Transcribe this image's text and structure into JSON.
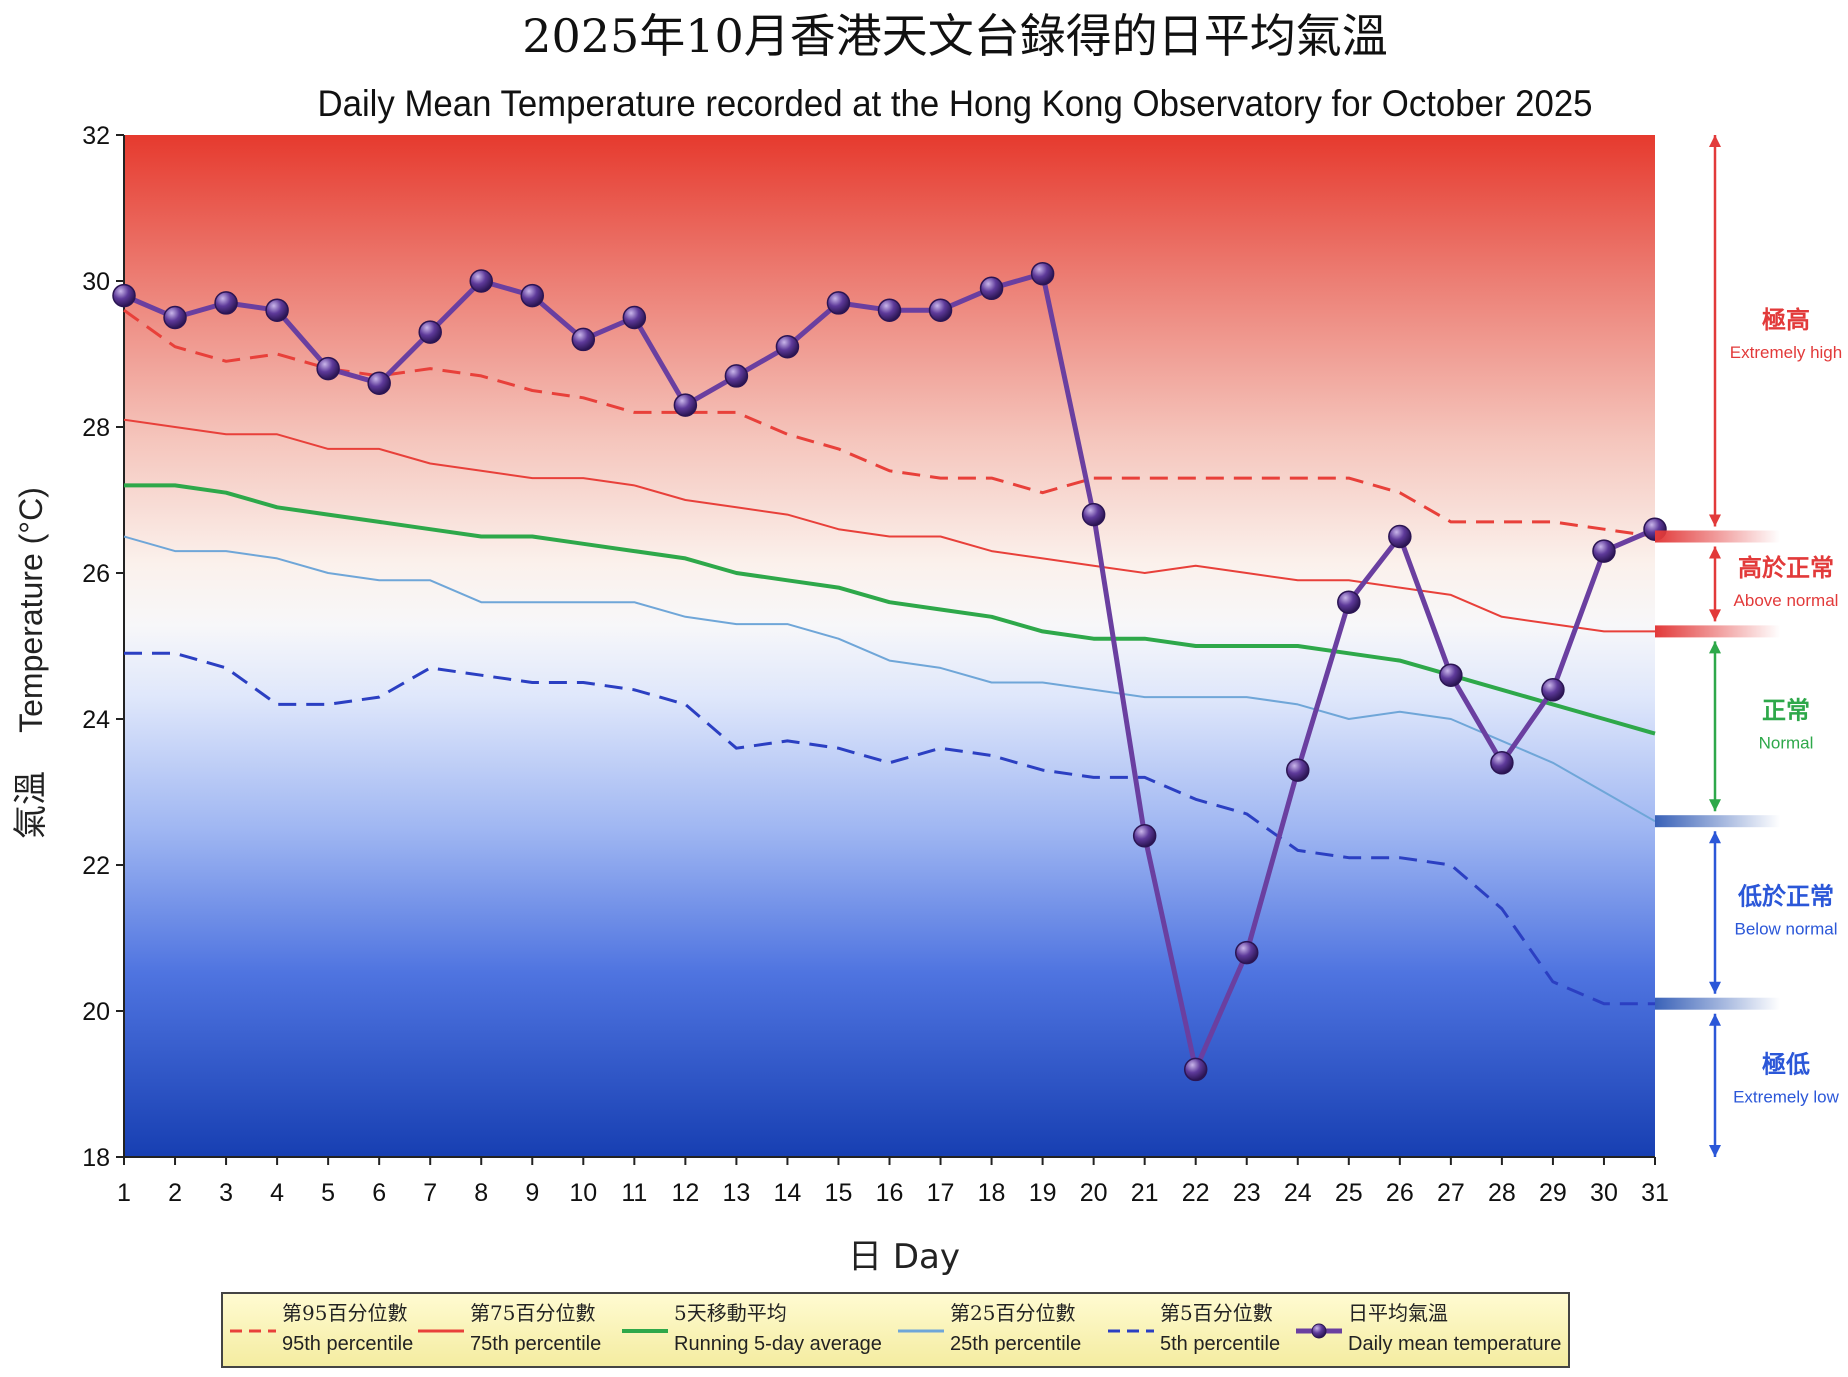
{
  "chart_data": {
    "type": "line",
    "title_zh": "2025年10月香港天文台錄得的日平均氣溫",
    "title_en": "Daily Mean Temperature recorded at the Hong Kong Observatory for October 2025",
    "xlabel": "日 Day",
    "ylabel_zh": "氣溫",
    "ylabel_en": "Temperature (°C)",
    "ylim": [
      18,
      32
    ],
    "yticks": [
      18,
      20,
      22,
      24,
      26,
      28,
      30,
      32
    ],
    "x": [
      1,
      2,
      3,
      4,
      5,
      6,
      7,
      8,
      9,
      10,
      11,
      12,
      13,
      14,
      15,
      16,
      17,
      18,
      19,
      20,
      21,
      22,
      23,
      24,
      25,
      26,
      27,
      28,
      29,
      30,
      31
    ],
    "series": [
      {
        "key": "p95",
        "name": "95th percentile",
        "name_zh": "第95百分位數",
        "color": "#e8403a",
        "dash": true,
        "width": 3,
        "values": [
          29.6,
          29.1,
          28.9,
          29.0,
          28.8,
          28.7,
          28.8,
          28.7,
          28.5,
          28.4,
          28.2,
          28.2,
          28.2,
          27.9,
          27.7,
          27.4,
          27.3,
          27.3,
          27.1,
          27.3,
          27.3,
          27.3,
          27.3,
          27.3,
          27.3,
          27.1,
          26.7,
          26.7,
          26.7,
          26.6,
          26.5
        ]
      },
      {
        "key": "p75",
        "name": "75th percentile",
        "name_zh": "第75百分位數",
        "color": "#e8403a",
        "dash": false,
        "width": 2,
        "values": [
          28.1,
          28.0,
          27.9,
          27.9,
          27.7,
          27.7,
          27.5,
          27.4,
          27.3,
          27.3,
          27.2,
          27.0,
          26.9,
          26.8,
          26.6,
          26.5,
          26.5,
          26.3,
          26.2,
          26.1,
          26.0,
          26.1,
          26.0,
          25.9,
          25.9,
          25.8,
          25.7,
          25.4,
          25.3,
          25.2,
          25.2
        ]
      },
      {
        "key": "avg5",
        "name": "Running 5-day average",
        "name_zh": "5天移動平均",
        "color": "#2ea84a",
        "dash": false,
        "width": 4,
        "values": [
          27.2,
          27.2,
          27.1,
          26.9,
          26.8,
          26.7,
          26.6,
          26.5,
          26.5,
          26.4,
          26.3,
          26.2,
          26.0,
          25.9,
          25.8,
          25.6,
          25.5,
          25.4,
          25.2,
          25.1,
          25.1,
          25.0,
          25.0,
          25.0,
          24.9,
          24.8,
          24.6,
          24.4,
          24.2,
          24.0,
          23.8
        ]
      },
      {
        "key": "p25",
        "name": "25th percentile",
        "name_zh": "第25百分位數",
        "color": "#6fa6d8",
        "dash": false,
        "width": 2,
        "values": [
          26.5,
          26.3,
          26.3,
          26.2,
          26.0,
          25.9,
          25.9,
          25.6,
          25.6,
          25.6,
          25.6,
          25.4,
          25.3,
          25.3,
          25.1,
          24.8,
          24.7,
          24.5,
          24.5,
          24.4,
          24.3,
          24.3,
          24.3,
          24.2,
          24.0,
          24.1,
          24.0,
          23.7,
          23.4,
          23.0,
          22.6
        ]
      },
      {
        "key": "p5",
        "name": "5th percentile",
        "name_zh": "第5百分位數",
        "color": "#2b3fc2",
        "dash": true,
        "width": 3,
        "values": [
          24.9,
          24.9,
          24.7,
          24.2,
          24.2,
          24.3,
          24.7,
          24.6,
          24.5,
          24.5,
          24.4,
          24.2,
          23.6,
          23.7,
          23.6,
          23.4,
          23.6,
          23.5,
          23.3,
          23.2,
          23.2,
          22.9,
          22.7,
          22.2,
          22.1,
          22.1,
          22.0,
          21.4,
          20.4,
          20.1,
          20.1
        ]
      },
      {
        "key": "daily",
        "name": "Daily mean temperature",
        "name_zh": "日平均氣溫",
        "color": "#6a3fa0",
        "dash": false,
        "width": 5,
        "values": [
          29.8,
          29.5,
          29.7,
          29.6,
          28.8,
          28.6,
          29.3,
          30.0,
          29.8,
          29.2,
          29.5,
          28.3,
          28.7,
          29.1,
          29.7,
          29.6,
          29.6,
          29.9,
          30.1,
          26.8,
          22.4,
          19.2,
          20.8,
          23.3,
          25.6,
          26.5,
          24.6,
          23.4,
          24.4,
          26.3,
          26.6
        ]
      }
    ],
    "categories_right": [
      {
        "zh": "極高",
        "en": "Extremely high",
        "color": "#e23a3a"
      },
      {
        "zh": "高於正常",
        "en": "Above normal",
        "color": "#e23a3a"
      },
      {
        "zh": "正常",
        "en": "Normal",
        "color": "#2ea84a"
      },
      {
        "zh": "低於正常",
        "en": "Below normal",
        "color": "#2b57d8"
      },
      {
        "zh": "極低",
        "en": "Extremely low",
        "color": "#2b57d8"
      }
    ],
    "legend_position": "bottom",
    "grid": false
  }
}
